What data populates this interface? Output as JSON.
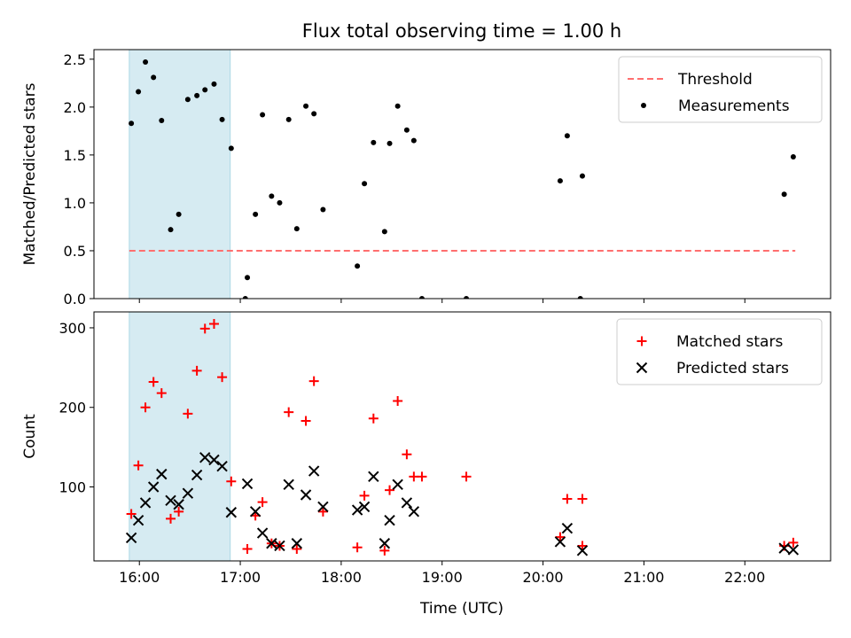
{
  "chart_data": {
    "title": "Flux total observing time = 1.00 h",
    "xlabel": "Time (UTC)",
    "x_unit": "hours UTC",
    "xlim": [
      15.55,
      22.85
    ],
    "xticks": [
      {
        "v": 16,
        "label": "16:00"
      },
      {
        "v": 17,
        "label": "17:00"
      },
      {
        "v": 18,
        "label": "18:00"
      },
      {
        "v": 19,
        "label": "19:00"
      },
      {
        "v": 20,
        "label": "20:00"
      },
      {
        "v": 21,
        "label": "21:00"
      },
      {
        "v": 22,
        "label": "22:00"
      }
    ],
    "shaded_interval": [
      15.9,
      16.9
    ],
    "panels": [
      {
        "type": "scatter",
        "ylabel": "Matched/Predicted stars",
        "ylim": [
          0,
          2.6
        ],
        "yticks": [
          0.0,
          0.5,
          1.0,
          1.5,
          2.0,
          2.5
        ],
        "ytick_labels": [
          "0.0",
          "0.5",
          "1.0",
          "1.5",
          "2.0",
          "2.5"
        ],
        "legend": "top-right",
        "threshold": {
          "name": "Threshold",
          "value": 0.5,
          "x_range": [
            15.9,
            22.5
          ],
          "color": "#ff6f6f"
        },
        "series": [
          {
            "name": "Measurements",
            "marker": "dot",
            "color": "#000000",
            "points": [
              [
                15.92,
                1.83
              ],
              [
                15.99,
                2.16
              ],
              [
                16.06,
                2.47
              ],
              [
                16.14,
                2.31
              ],
              [
                16.22,
                1.86
              ],
              [
                16.31,
                0.72
              ],
              [
                16.39,
                0.88
              ],
              [
                16.48,
                2.08
              ],
              [
                16.57,
                2.12
              ],
              [
                16.65,
                2.18
              ],
              [
                16.74,
                2.24
              ],
              [
                16.82,
                1.87
              ],
              [
                16.91,
                1.57
              ],
              [
                17.05,
                0.0
              ],
              [
                17.07,
                0.22
              ],
              [
                17.15,
                0.88
              ],
              [
                17.22,
                1.92
              ],
              [
                17.31,
                1.07
              ],
              [
                17.39,
                1.0
              ],
              [
                17.48,
                1.87
              ],
              [
                17.56,
                0.73
              ],
              [
                17.65,
                2.01
              ],
              [
                17.73,
                1.93
              ],
              [
                17.82,
                0.93
              ],
              [
                18.16,
                0.34
              ],
              [
                18.23,
                1.2
              ],
              [
                18.32,
                1.63
              ],
              [
                18.43,
                0.7
              ],
              [
                18.48,
                1.62
              ],
              [
                18.56,
                2.01
              ],
              [
                18.65,
                1.76
              ],
              [
                18.72,
                1.65
              ],
              [
                18.8,
                0.0
              ],
              [
                19.24,
                0.0
              ],
              [
                20.17,
                1.23
              ],
              [
                20.24,
                1.7
              ],
              [
                20.37,
                0.0
              ],
              [
                20.39,
                1.28
              ],
              [
                22.39,
                1.09
              ],
              [
                22.48,
                1.48
              ]
            ]
          }
        ]
      },
      {
        "type": "scatter",
        "ylabel": "Count",
        "ylim": [
          7,
          320
        ],
        "yticks": [
          100,
          200,
          300
        ],
        "ytick_labels": [
          "100",
          "200",
          "300"
        ],
        "legend": "top-right",
        "series": [
          {
            "name": "Matched stars",
            "marker": "plus",
            "color": "#ff0000",
            "points": [
              [
                15.92,
                66
              ],
              [
                15.99,
                127
              ],
              [
                16.06,
                200
              ],
              [
                16.14,
                232
              ],
              [
                16.22,
                218
              ],
              [
                16.31,
                60
              ],
              [
                16.39,
                69
              ],
              [
                16.48,
                192
              ],
              [
                16.57,
                246
              ],
              [
                16.65,
                299
              ],
              [
                16.74,
                305
              ],
              [
                16.82,
                238
              ],
              [
                16.91,
                107
              ],
              [
                17.07,
                22
              ],
              [
                17.15,
                64
              ],
              [
                17.22,
                81
              ],
              [
                17.31,
                29
              ],
              [
                17.39,
                26
              ],
              [
                17.48,
                194
              ],
              [
                17.56,
                22
              ],
              [
                17.65,
                183
              ],
              [
                17.73,
                233
              ],
              [
                17.82,
                69
              ],
              [
                18.16,
                24
              ],
              [
                18.23,
                89
              ],
              [
                18.32,
                186
              ],
              [
                18.43,
                20
              ],
              [
                18.48,
                96
              ],
              [
                18.56,
                208
              ],
              [
                18.65,
                141
              ],
              [
                18.72,
                113
              ],
              [
                18.8,
                113
              ],
              [
                19.24,
                113
              ],
              [
                20.17,
                37
              ],
              [
                20.24,
                85
              ],
              [
                20.39,
                26
              ],
              [
                20.39,
                85
              ],
              [
                22.39,
                26
              ],
              [
                22.48,
                30
              ]
            ]
          },
          {
            "name": "Predicted stars",
            "marker": "x",
            "color": "#000000",
            "points": [
              [
                15.92,
                36
              ],
              [
                15.99,
                58
              ],
              [
                16.06,
                80
              ],
              [
                16.14,
                100
              ],
              [
                16.22,
                116
              ],
              [
                16.31,
                83
              ],
              [
                16.39,
                78
              ],
              [
                16.48,
                92
              ],
              [
                16.57,
                115
              ],
              [
                16.65,
                137
              ],
              [
                16.74,
                134
              ],
              [
                16.82,
                126
              ],
              [
                16.91,
                68
              ],
              [
                17.07,
                104
              ],
              [
                17.15,
                69
              ],
              [
                17.22,
                42
              ],
              [
                17.31,
                29
              ],
              [
                17.39,
                26
              ],
              [
                17.48,
                103
              ],
              [
                17.56,
                29
              ],
              [
                17.65,
                90
              ],
              [
                17.73,
                120
              ],
              [
                17.82,
                75
              ],
              [
                18.16,
                71
              ],
              [
                18.23,
                75
              ],
              [
                18.32,
                113
              ],
              [
                18.43,
                29
              ],
              [
                18.48,
                58
              ],
              [
                18.56,
                103
              ],
              [
                18.65,
                80
              ],
              [
                18.72,
                69
              ],
              [
                20.17,
                31
              ],
              [
                20.24,
                48
              ],
              [
                20.39,
                20
              ],
              [
                22.39,
                23
              ],
              [
                22.48,
                21
              ]
            ]
          }
        ]
      }
    ]
  }
}
